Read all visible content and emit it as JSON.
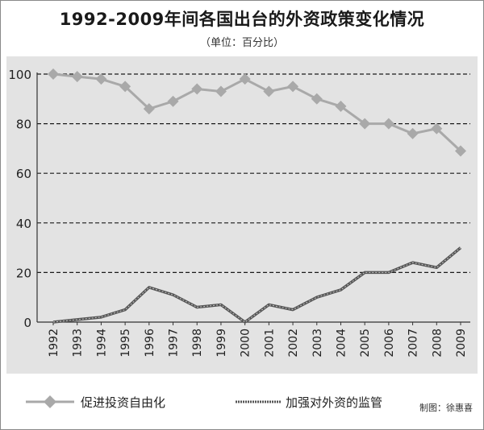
{
  "title": "1992-2009年间各国出台的外资政策变化情况",
  "subtitle": "（单位：百分比）",
  "credit": "制图：徐惠喜",
  "chart_data": {
    "type": "line",
    "x": [
      "1992",
      "1993",
      "1994",
      "1995",
      "1996",
      "1997",
      "1998",
      "1999",
      "2000",
      "2001",
      "2002",
      "2003",
      "2004",
      "2005",
      "2006",
      "2007",
      "2008",
      "2009"
    ],
    "ylim": [
      0,
      100
    ],
    "yticks": [
      0,
      20,
      40,
      60,
      80,
      100
    ],
    "grid": true,
    "legend_position": "bottom",
    "series": [
      {
        "name": "促进投资自由化",
        "color": "#a9a9a9",
        "marker": "diamond",
        "values": [
          100,
          99,
          98,
          95,
          86,
          89,
          94,
          93,
          98,
          93,
          95,
          90,
          87,
          80,
          80,
          76,
          78,
          69
        ]
      },
      {
        "name": "加强对外资的监管",
        "color": "#555555",
        "marker": "none",
        "values": [
          0,
          1,
          2,
          5,
          14,
          11,
          6,
          7,
          0,
          7,
          5,
          10,
          13,
          20,
          20,
          24,
          22,
          30
        ]
      }
    ]
  }
}
